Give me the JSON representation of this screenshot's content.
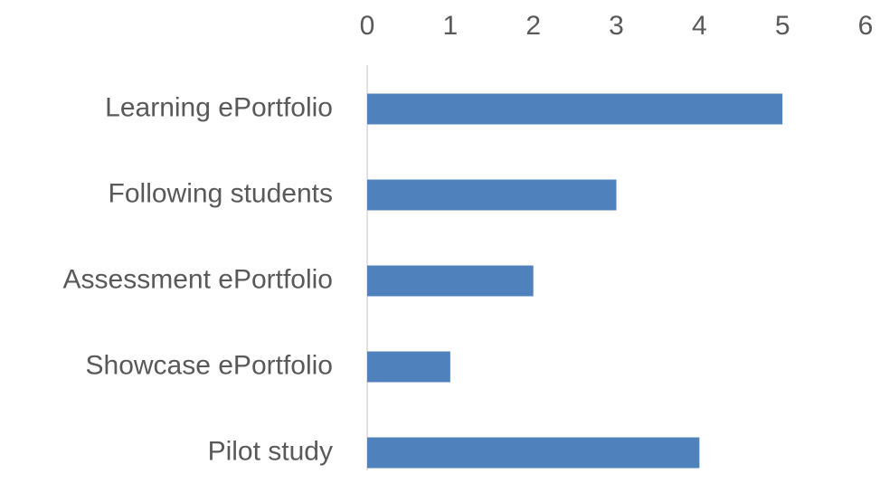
{
  "chart_data": {
    "type": "bar",
    "orientation": "horizontal",
    "categories": [
      "Learning ePortfolio",
      "Following students",
      "Assessment ePortfolio",
      "Showcase ePortfolio",
      "Pilot study"
    ],
    "values": [
      5,
      3,
      2,
      1,
      4
    ],
    "color": "#4f81bd",
    "xlim": [
      0,
      6
    ],
    "xticks": [
      0,
      1,
      2,
      3,
      4,
      5,
      6
    ],
    "grid": false
  }
}
